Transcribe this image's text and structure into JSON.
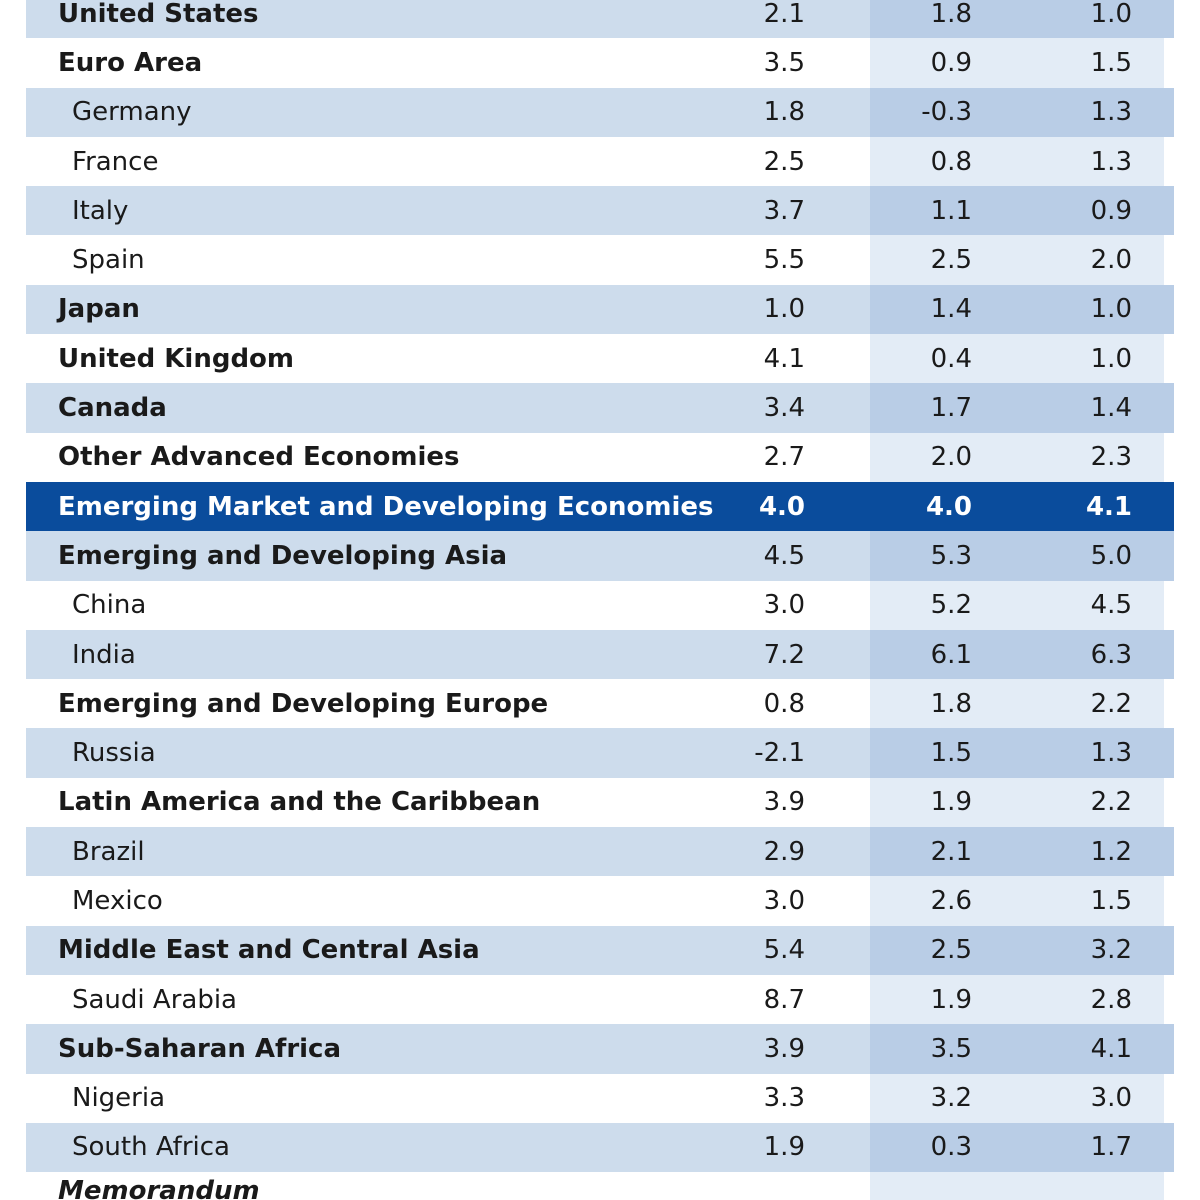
{
  "rows": [
    {
      "label": "United States",
      "v1": "2.1",
      "v2": "1.8",
      "v3": "1.0",
      "style": "shaded",
      "level": "main"
    },
    {
      "label": "Euro Area",
      "v1": "3.5",
      "v2": "0.9",
      "v3": "1.5",
      "style": "plain",
      "level": "main"
    },
    {
      "label": "Germany",
      "v1": "1.8",
      "v2": "-0.3",
      "v3": "1.3",
      "style": "shaded",
      "level": "sub"
    },
    {
      "label": "France",
      "v1": "2.5",
      "v2": "0.8",
      "v3": "1.3",
      "style": "plain",
      "level": "sub"
    },
    {
      "label": "Italy",
      "v1": "3.7",
      "v2": "1.1",
      "v3": "0.9",
      "style": "shaded",
      "level": "sub"
    },
    {
      "label": "Spain",
      "v1": "5.5",
      "v2": "2.5",
      "v3": "2.0",
      "style": "plain",
      "level": "sub"
    },
    {
      "label": "Japan",
      "v1": "1.0",
      "v2": "1.4",
      "v3": "1.0",
      "style": "shaded",
      "level": "main"
    },
    {
      "label": "United Kingdom",
      "v1": "4.1",
      "v2": "0.4",
      "v3": "1.0",
      "style": "plain",
      "level": "main"
    },
    {
      "label": "Canada",
      "v1": "3.4",
      "v2": "1.7",
      "v3": "1.4",
      "style": "shaded",
      "level": "main"
    },
    {
      "label": "Other Advanced Economies",
      "v1": "2.7",
      "v2": "2.0",
      "v3": "2.3",
      "style": "plain",
      "level": "main"
    },
    {
      "label": "Emerging Market and Developing Economies",
      "v1": "4.0",
      "v2": "4.0",
      "v3": "4.1",
      "style": "highlight",
      "level": "main"
    },
    {
      "label": "Emerging and Developing Asia",
      "v1": "4.5",
      "v2": "5.3",
      "v3": "5.0",
      "style": "shaded",
      "level": "main"
    },
    {
      "label": "China",
      "v1": "3.0",
      "v2": "5.2",
      "v3": "4.5",
      "style": "plain",
      "level": "sub"
    },
    {
      "label": "India",
      "v1": "7.2",
      "v2": "6.1",
      "v3": "6.3",
      "style": "shaded",
      "level": "sub"
    },
    {
      "label": "Emerging and Developing Europe",
      "v1": "0.8",
      "v2": "1.8",
      "v3": "2.2",
      "style": "plain",
      "level": "main"
    },
    {
      "label": "Russia",
      "v1": "-2.1",
      "v2": "1.5",
      "v3": "1.3",
      "style": "shaded",
      "level": "sub"
    },
    {
      "label": "Latin America and the Caribbean",
      "v1": "3.9",
      "v2": "1.9",
      "v3": "2.2",
      "style": "plain",
      "level": "main"
    },
    {
      "label": "Brazil",
      "v1": "2.9",
      "v2": "2.1",
      "v3": "1.2",
      "style": "shaded",
      "level": "sub"
    },
    {
      "label": "Mexico",
      "v1": "3.0",
      "v2": "2.6",
      "v3": "1.5",
      "style": "plain",
      "level": "sub"
    },
    {
      "label": "Middle East and Central Asia",
      "v1": "5.4",
      "v2": "2.5",
      "v3": "3.2",
      "style": "shaded",
      "level": "main"
    },
    {
      "label": "Saudi Arabia",
      "v1": "8.7",
      "v2": "1.9",
      "v3": "2.8",
      "style": "plain",
      "level": "sub"
    },
    {
      "label": "Sub-Saharan Africa",
      "v1": "3.9",
      "v2": "3.5",
      "v3": "4.1",
      "style": "shaded",
      "level": "main"
    },
    {
      "label": "Nigeria",
      "v1": "3.3",
      "v2": "3.2",
      "v3": "3.0",
      "style": "plain",
      "level": "sub"
    },
    {
      "label": "South Africa",
      "v1": "1.9",
      "v2": "0.3",
      "v3": "1.7",
      "style": "shaded",
      "level": "sub"
    }
  ],
  "memo": {
    "label": "Memorandum"
  },
  "colors": {
    "shaded_row": "#cddcec",
    "shaded_col": "#b9cde6",
    "plain_col": "#e3ecf6",
    "highlight": "#0a4c9c"
  }
}
